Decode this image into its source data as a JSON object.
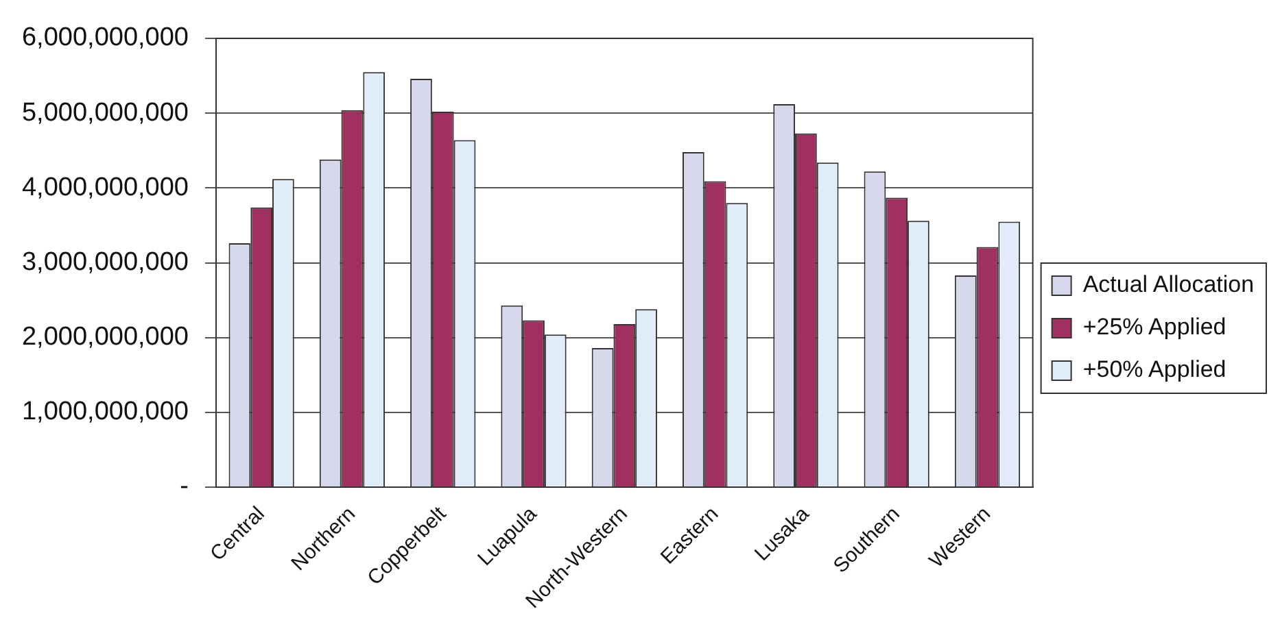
{
  "chart_data": {
    "type": "bar",
    "categories": [
      "Central",
      "Northern",
      "Copperbelt",
      "Luapula",
      "North-Western",
      "Eastern",
      "Lusaka",
      "Southern",
      "Western"
    ],
    "series": [
      {
        "name": "Actual Allocation",
        "color": "#d8d8ec",
        "values": [
          3260000000,
          4380000000,
          5460000000,
          2430000000,
          1860000000,
          4480000000,
          5120000000,
          4220000000,
          2830000000
        ]
      },
      {
        "name": "+25% Applied",
        "color": "#a03060",
        "values": [
          3740000000,
          5040000000,
          5020000000,
          2230000000,
          2180000000,
          4090000000,
          4730000000,
          3870000000,
          3210000000
        ]
      },
      {
        "name": "+50% Applied",
        "color": "#e0ecf8",
        "values": [
          4120000000,
          5550000000,
          4640000000,
          2040000000,
          2380000000,
          3800000000,
          4340000000,
          3560000000,
          3550000000
        ]
      }
    ],
    "ylim": [
      0,
      6000000000
    ],
    "yticks": [
      {
        "value": 0,
        "label": "-"
      },
      {
        "value": 1000000000,
        "label": "1,000,000,000"
      },
      {
        "value": 2000000000,
        "label": "2,000,000,000"
      },
      {
        "value": 3000000000,
        "label": "3,000,000,000"
      },
      {
        "value": 4000000000,
        "label": "4,000,000,000"
      },
      {
        "value": 5000000000,
        "label": "5,000,000,000"
      },
      {
        "value": 6000000000,
        "label": "6,000,000,000"
      }
    ],
    "grid": "y",
    "legend": "right"
  }
}
